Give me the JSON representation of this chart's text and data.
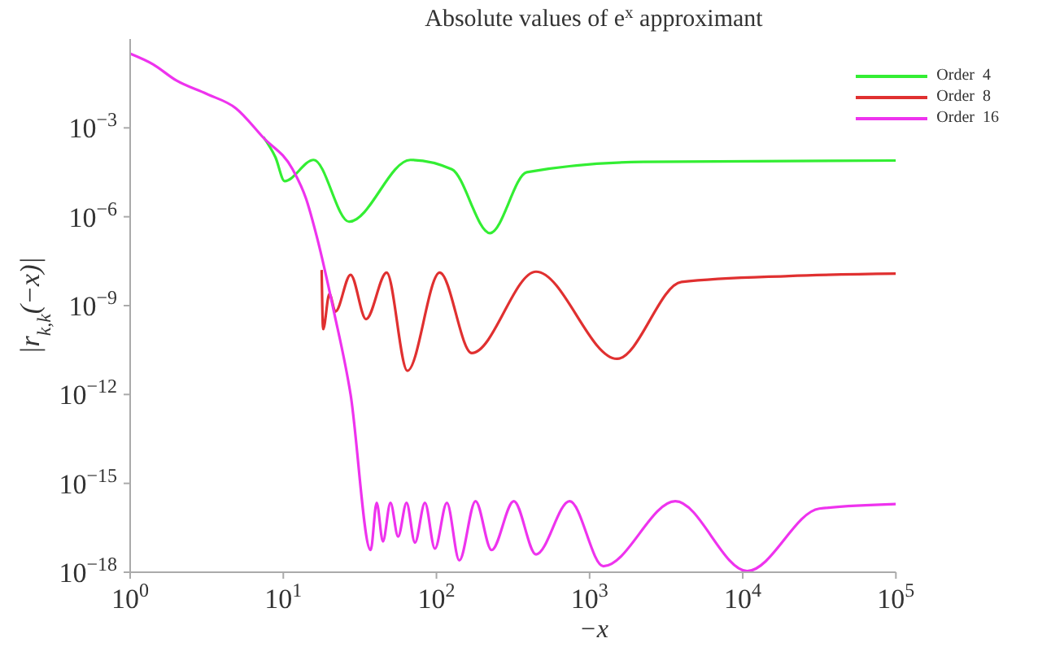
{
  "chart_data": {
    "type": "line",
    "title": "Absolute values of e$^{x}$ approximant",
    "xlabel": "−x",
    "ylabel": "|r$_{k,k}$(−x)|",
    "log": "xy",
    "legend": "top right",
    "marker": "none",
    "line_style": "solid",
    "xlim": [
      1,
      100000
    ],
    "xticks": [
      {
        "value": 1,
        "label": "10$^{0}$"
      },
      {
        "value": 10,
        "label": "10$^{1}$"
      },
      {
        "value": 100,
        "label": "10$^{2}$"
      },
      {
        "value": 1000,
        "label": "10$^{3}$"
      },
      {
        "value": 10000,
        "label": "10$^{4}$"
      },
      {
        "value": 100000,
        "label": "10$^{5}$"
      }
    ],
    "ylim": [
      1e-18,
      1
    ],
    "yticks": [
      {
        "value": 1e-18,
        "label": "10$^{−18}$"
      },
      {
        "value": 1e-15,
        "label": "10$^{−15}$"
      },
      {
        "value": 1e-12,
        "label": "10$^{−12}$"
      },
      {
        "value": 1e-09,
        "label": "10$^{−9}$"
      },
      {
        "value": 1e-06,
        "label": "10$^{−6}$"
      },
      {
        "value": 0.001,
        "label": "10$^{−3}$"
      }
    ],
    "series": [
      {
        "name": "Order  4",
        "color": "#33ee33",
        "x": [
          7.4,
          8.9,
          10.2,
          15.8,
          26.9,
          67.6,
          126,
          224,
          389,
          2240,
          100000
        ],
        "values": [
          0.0005,
          0.0001,
          1.6e-05,
          8.3e-05,
          6.8e-07,
          8.3e-05,
          4e-05,
          2.8e-07,
          3.2e-05,
          7.1e-05,
          7.9e-05
        ]
      },
      {
        "name": "Order  8",
        "color": "#e03030",
        "x": [
          17.8,
          18.2,
          20,
          21.9,
          27.5,
          34.7,
          47.3,
          64.6,
          105,
          170,
          447,
          1510,
          3980,
          20000,
          100000
        ],
        "values": [
          1.6e-08,
          1.6e-10,
          2.5e-09,
          6.3e-10,
          1.1e-08,
          3.5e-10,
          1.3e-08,
          6.3e-12,
          1.3e-08,
          2.5e-11,
          1.4e-08,
          1.6e-11,
          6.3e-09,
          1e-08,
          1.2e-08
        ]
      },
      {
        "name": "Order  16",
        "color": "#ee33ee",
        "x": [
          1,
          1.41,
          2,
          3.16,
          4.9,
          7.4,
          11.5,
          14.1,
          16.6,
          21.4,
          27.5,
          37.2,
          40.7,
          44.7,
          50.1,
          56.2,
          63.8,
          72.4,
          84.1,
          97.7,
          117,
          141,
          180,
          229,
          320,
          447,
          741,
          1230,
          3630,
          10700,
          31600,
          100000
        ],
        "values": [
          0.32,
          0.14,
          0.04,
          0.014,
          0.0046,
          0.00047,
          4e-05,
          4e-06,
          2e-07,
          6.3e-10,
          1e-12,
          5.6e-18,
          2.2e-16,
          1.1e-17,
          2.2e-16,
          1.6e-17,
          2.2e-16,
          1e-17,
          2.2e-16,
          6.3e-18,
          2.2e-16,
          2.5e-18,
          2.5e-16,
          5.6e-18,
          2.5e-16,
          4e-18,
          2.5e-16,
          1.6e-18,
          2.5e-16,
          1.1e-18,
          1.4e-16,
          2e-16
        ]
      }
    ]
  }
}
